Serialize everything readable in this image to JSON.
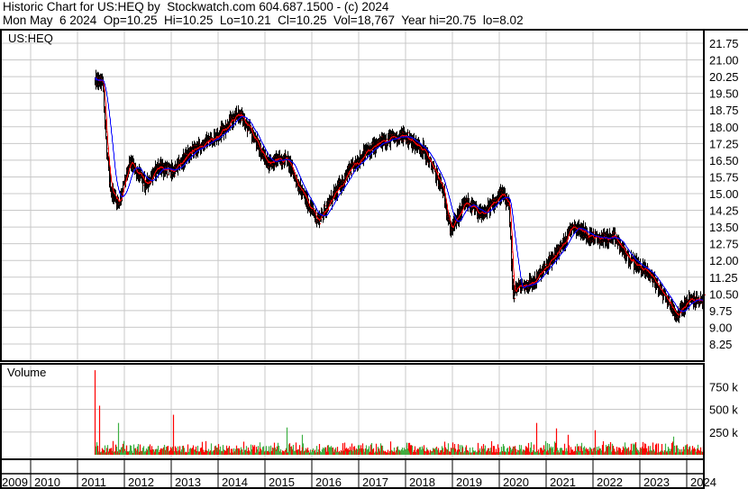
{
  "header": {
    "line1": "Historic Chart for US:HEQ by  Stockwatch.com 604.687.1500 - (c) 2024",
    "line2": "Mon May  6 2024  Op=10.25  Hi=10.25  Lo=10.21  Cl=10.25  Vol=18,767  Year hi=20.75  lo=8.02"
  },
  "chart_data": {
    "type": "line",
    "price_pane": {
      "symbol_label": "US:HEQ",
      "ylim": [
        7.75,
        22.0
      ],
      "y_ticks": [
        "21.75",
        "21.00",
        "20.25",
        "19.50",
        "18.75",
        "18.00",
        "17.25",
        "16.50",
        "15.75",
        "15.00",
        "14.25",
        "13.50",
        "12.75",
        "12.00",
        "11.25",
        "10.50",
        "9.75",
        "9.00",
        "8.25"
      ],
      "series": [
        {
          "style": "price-bars",
          "color": "#000000",
          "points": [
            [
              "2011-05",
              20.05
            ],
            [
              "2011-07",
              20.0
            ],
            [
              "2011-08",
              16.6
            ],
            [
              "2011-09",
              15.2
            ],
            [
              "2011-11",
              14.6
            ],
            [
              "2012-02",
              16.4
            ],
            [
              "2012-06",
              15.4
            ],
            [
              "2012-09",
              16.2
            ],
            [
              "2013-01",
              16.0
            ],
            [
              "2013-05",
              16.8
            ],
            [
              "2013-12",
              17.6
            ],
            [
              "2014-06",
              18.6
            ],
            [
              "2014-10",
              17.4
            ],
            [
              "2015-01",
              16.4
            ],
            [
              "2015-06",
              16.6
            ],
            [
              "2015-10",
              15.0
            ],
            [
              "2016-02",
              13.8
            ],
            [
              "2016-05",
              14.6
            ],
            [
              "2016-10",
              16.0
            ],
            [
              "2017-02",
              16.8
            ],
            [
              "2017-07",
              17.4
            ],
            [
              "2017-12",
              17.6
            ],
            [
              "2018-05",
              17.0
            ],
            [
              "2018-10",
              15.2
            ],
            [
              "2018-12",
              13.4
            ],
            [
              "2019-04",
              14.6
            ],
            [
              "2019-08",
              14.0
            ],
            [
              "2020-01",
              15.0
            ],
            [
              "2020-03",
              14.4
            ],
            [
              "2020-04",
              10.4
            ],
            [
              "2020-05",
              10.8
            ],
            [
              "2020-09",
              11.0
            ],
            [
              "2020-12",
              11.6
            ],
            [
              "2021-05",
              12.8
            ],
            [
              "2021-07",
              13.6
            ],
            [
              "2022-01",
              13.0
            ],
            [
              "2022-06",
              13.0
            ],
            [
              "2022-10",
              12.0
            ],
            [
              "2023-03",
              11.4
            ],
            [
              "2023-06",
              10.6
            ],
            [
              "2023-10",
              9.55
            ],
            [
              "2024-01",
              10.2
            ],
            [
              "2024-05",
              10.25
            ]
          ]
        },
        {
          "style": "moving-average-short",
          "color": "#ff0000"
        },
        {
          "style": "moving-average-long",
          "color": "#0000ff"
        }
      ]
    },
    "volume_pane": {
      "label": "Volume",
      "ylim": [
        0,
        1000000
      ],
      "y_ticks": [
        "750 k",
        "500 k",
        "250 k"
      ],
      "up_color": "#3cb043",
      "down_color": "#ff0000",
      "spikes": [
        [
          "2011-05",
          930000
        ],
        [
          "2011-06",
          540000
        ],
        [
          "2011-11",
          350000
        ],
        [
          "2013-01",
          440000
        ],
        [
          "2015-06",
          300000
        ],
        [
          "2015-10",
          220000
        ],
        [
          "2020-10",
          350000
        ],
        [
          "2021-03",
          290000
        ],
        [
          "2021-06",
          220000
        ],
        [
          "2022-01",
          270000
        ],
        [
          "2023-09",
          200000
        ]
      ]
    },
    "x_ticks": [
      "2009",
      "2010",
      "2011",
      "2012",
      "2013",
      "2014",
      "2015",
      "2016",
      "2017",
      "2018",
      "2019",
      "2020",
      "2021",
      "2022",
      "2023",
      "2024"
    ],
    "grid": true
  }
}
